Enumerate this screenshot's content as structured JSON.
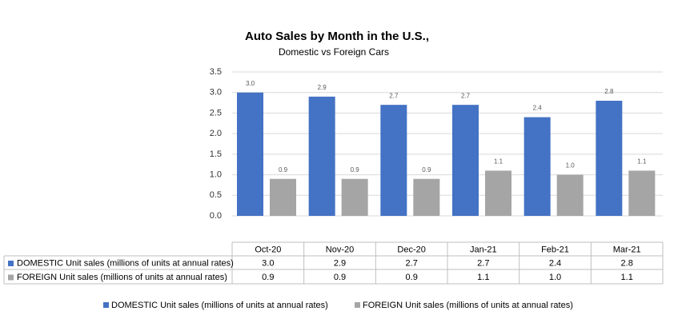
{
  "chart_data": {
    "type": "bar",
    "title": "Auto Sales by Month in the U.S.,",
    "subtitle": "Domestic vs Foreign Cars",
    "categories": [
      "Oct-20",
      "Nov-20",
      "Dec-20",
      "Jan-21",
      "Feb-21",
      "Mar-21"
    ],
    "series": [
      {
        "name": "DOMESTIC Unit sales (millions of units at annual rates)",
        "color": "#4472c4",
        "values": [
          3,
          2.9,
          2.7,
          2.7,
          2.4,
          2.8
        ],
        "value_labels": [
          "3.0",
          "2.9",
          "2.7",
          "2.7",
          "2.4",
          "2.8"
        ]
      },
      {
        "name": "FOREIGN Unit sales (millions of units at annual rates)",
        "color": "#a5a5a5",
        "values": [
          0.9,
          0.9,
          0.9,
          1.1,
          1,
          1.1
        ],
        "value_labels": [
          "0.9",
          "0.9",
          "0.9",
          "1.1",
          "1.0",
          "1.1"
        ]
      }
    ],
    "ylim": [
      0,
      3.5
    ],
    "yticks": [
      {
        "value": 0,
        "label": "0.0"
      },
      0.5,
      {
        "value": 1,
        "label": "1.0"
      },
      1.5,
      {
        "value": 2,
        "label": "2.0"
      },
      2.5,
      {
        "value": 3,
        "label": "3.0"
      },
      3.5
    ],
    "grid": true,
    "legend": "bottom"
  }
}
